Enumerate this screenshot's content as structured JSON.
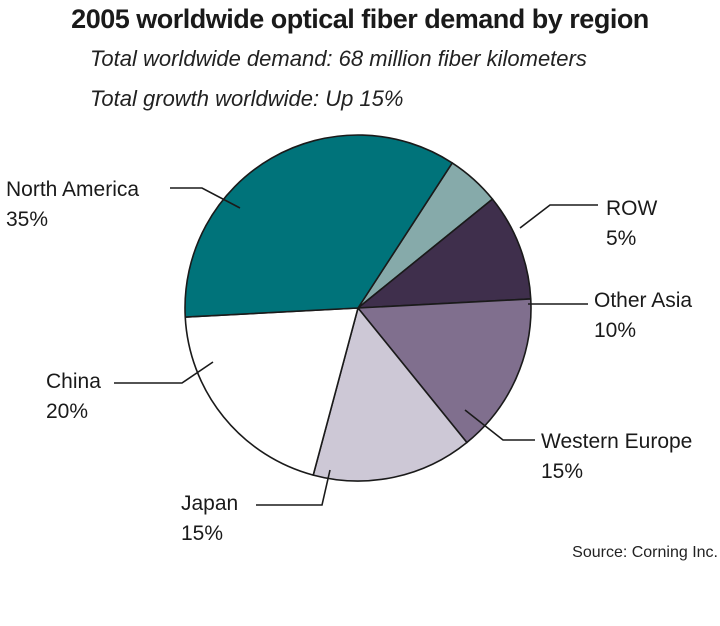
{
  "title": "2005 worldwide optical fiber demand by region",
  "subtitle_1": "Total worldwide demand: 68 million fiber kilometers",
  "subtitle_2": "Total growth worldwide: Up 15%",
  "source": "Source: Corning Inc.",
  "chart_data": {
    "type": "pie",
    "title": "2005 worldwide optical fiber demand by region",
    "start_angle_deg": -57,
    "direction": "clockwise",
    "slices": [
      {
        "label": "ROW",
        "value": 5,
        "value_label": "5%",
        "color": "#86aaaa"
      },
      {
        "label": "Other Asia",
        "value": 10,
        "value_label": "10%",
        "color": "#3f2f4c"
      },
      {
        "label": "Western Europe",
        "value": 15,
        "value_label": "15%",
        "color": "#806f8e"
      },
      {
        "label": "Japan",
        "value": 15,
        "value_label": "15%",
        "color": "#cdc8d6"
      },
      {
        "label": "China",
        "value": 20,
        "value_label": "20%",
        "color": "#ffffff"
      },
      {
        "label": "North America",
        "value": 35,
        "value_label": "35%",
        "color": "#00737a"
      }
    ]
  }
}
